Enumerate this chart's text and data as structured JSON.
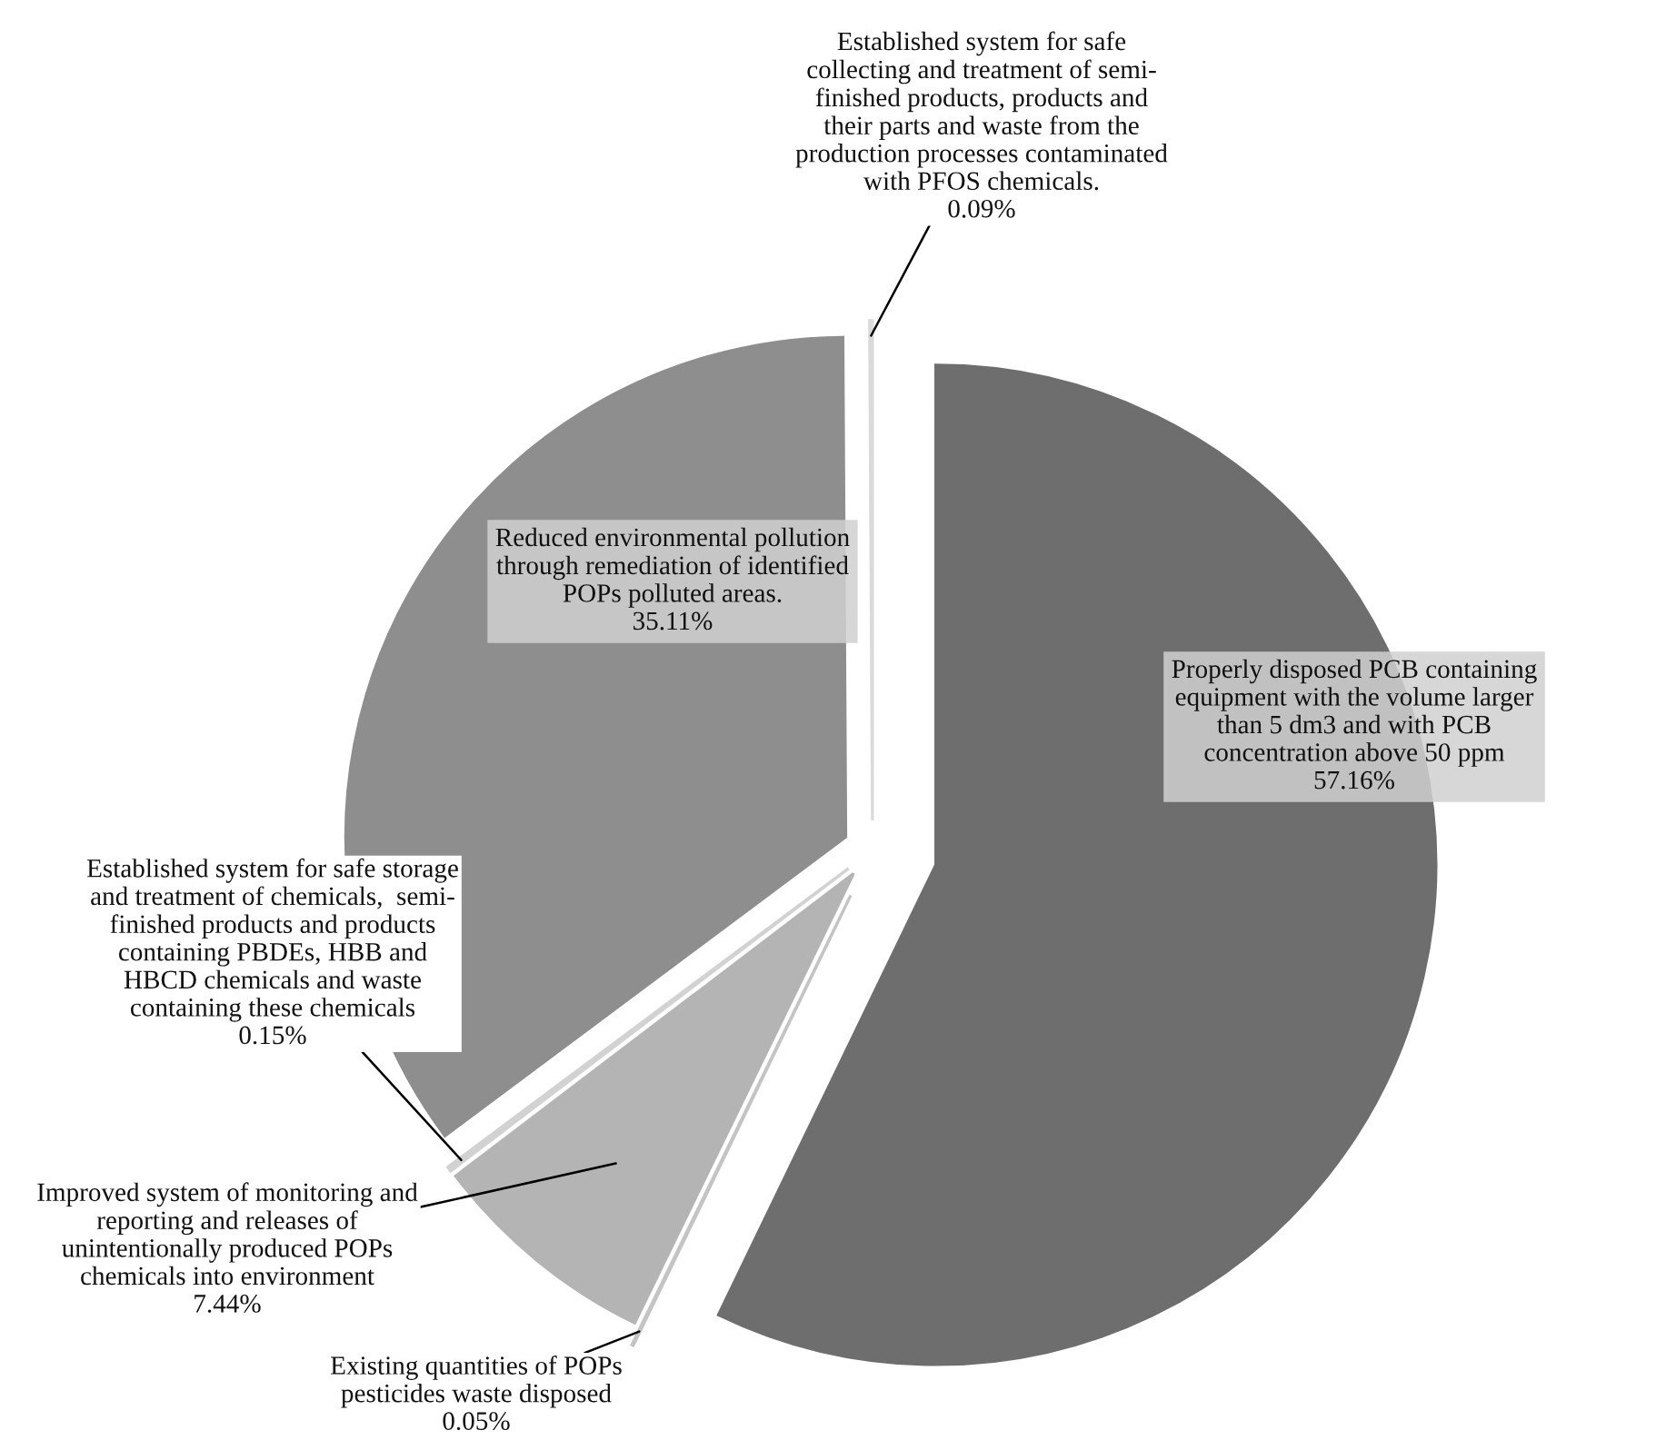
{
  "chart_data": {
    "type": "pie",
    "categories": [
      "Properly disposed PCB containing\nequipment with the volume larger\nthan 5 dm3 and with PCB\nconcentration above 50 ppm",
      "Existing quantities of POPs\npesticides waste disposed",
      "Improved system of monitoring and\nreporting and releases of\nunintentionally produced POPs\nchemicals into environment",
      "Established system for safe storage\nand treatment of chemicals,  semi-\nfinished products and products\ncontaining PBDEs, HBB and\nHBCD chemicals and waste\ncontaining these chemicals",
      "Reduced environmental pollution\nthrough remediation of identified\nPOPs polluted areas.",
      "Established system for safe\ncollecting and treatment of semi-\nfinished products, products and\ntheir parts and waste from the\nproduction processes contaminated\nwith PFOS chemicals."
    ],
    "values": [
      57.16,
      0.05,
      7.44,
      0.15,
      35.11,
      0.09
    ],
    "value_labels": [
      "57.16%",
      "0.05%",
      "7.44%",
      "0.15%",
      "35.11%",
      "0.09%"
    ],
    "colors": [
      "#6e6e6e",
      "#c4c4c4",
      "#b4b4b4",
      "#d2d2d2",
      "#8e8e8e",
      "#dadada"
    ],
    "legend": false
  }
}
